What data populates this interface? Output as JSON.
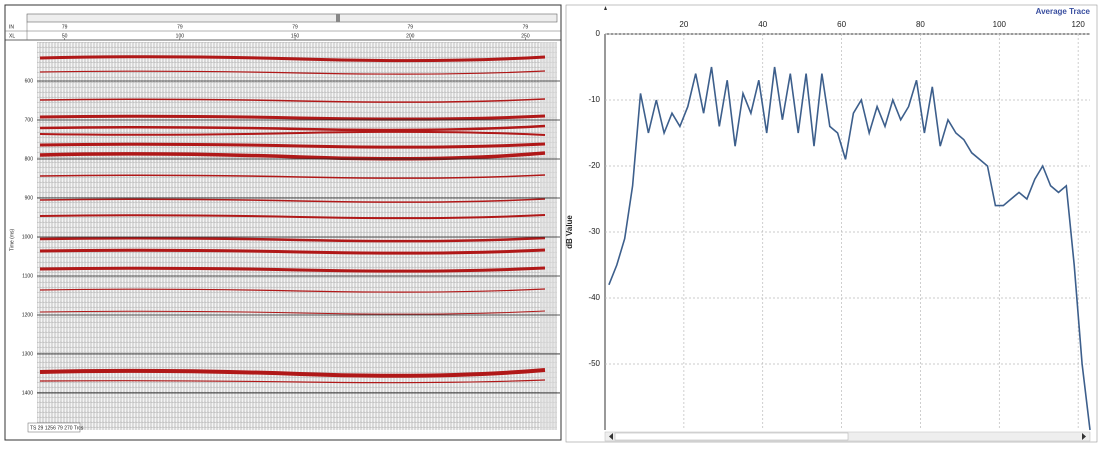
{
  "chart_data": [
    {
      "type": "seismic",
      "row_labels": [
        "IN",
        "XL"
      ],
      "in_values": [
        79,
        79,
        79,
        79,
        79
      ],
      "xlim": [
        38,
        265
      ],
      "xticks": [
        50,
        100,
        150,
        200,
        250
      ],
      "ylabel": "Time (ms)",
      "ylim": [
        500,
        1495
      ],
      "yticks": [
        600,
        700,
        800,
        900,
        1000,
        1100,
        1200,
        1300,
        1400
      ],
      "grid": true,
      "status_text": "TS 29 1256 79 270 Trcs"
    },
    {
      "type": "line",
      "title": "Average Trace",
      "ylabel": "dB Value",
      "color": "#3d5f8c",
      "x": [
        1,
        3,
        5,
        7,
        9,
        11,
        13,
        15,
        17,
        19,
        21,
        23,
        25,
        27,
        29,
        31,
        33,
        35,
        37,
        39,
        41,
        43,
        45,
        47,
        49,
        51,
        53,
        55,
        57,
        59,
        61,
        63,
        65,
        67,
        69,
        71,
        73,
        75,
        77,
        79,
        81,
        83,
        85,
        87,
        89,
        91,
        93,
        95,
        97,
        99,
        101,
        103,
        105,
        107,
        109,
        111,
        113,
        115,
        117,
        119,
        121,
        123
      ],
      "values": [
        -38,
        -35,
        -31,
        -23,
        -9,
        -15,
        -10,
        -15,
        -12,
        -14,
        -11,
        -6,
        -12,
        -5,
        -14,
        -7,
        -17,
        -9,
        -12,
        -7,
        -15,
        -5,
        -13,
        -6,
        -15,
        -6,
        -17,
        -6,
        -14,
        -15,
        -19,
        -12,
        -10,
        -15,
        -11,
        -14,
        -10,
        -13,
        -11,
        -7,
        -15,
        -8,
        -17,
        -13,
        -15,
        -16,
        -18,
        -19,
        -20,
        -26,
        -26,
        -25,
        -24,
        -25,
        -22,
        -20,
        -23,
        -24,
        -23,
        -35,
        -50,
        -60
      ],
      "xlim": [
        0,
        123
      ],
      "xticks": [
        20,
        40,
        60,
        80,
        100,
        120
      ],
      "ylim": [
        -60,
        0
      ],
      "yticks": [
        0,
        -10,
        -20,
        -30,
        -40,
        -50
      ],
      "grid": true
    }
  ]
}
